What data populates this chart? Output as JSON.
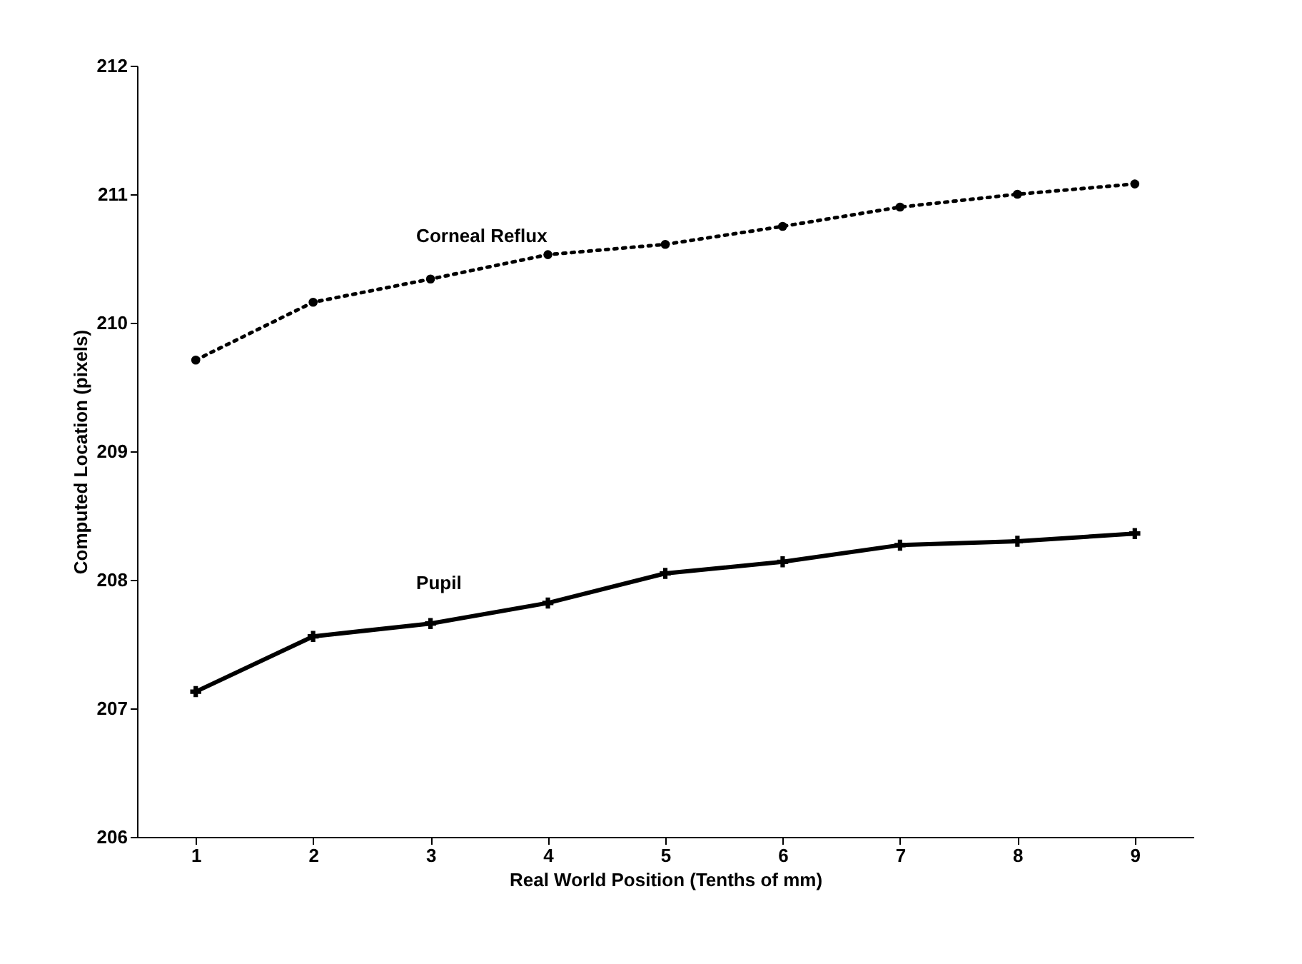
{
  "chart_data": {
    "type": "line",
    "xlabel": "Real World Position (Tenths of mm)",
    "ylabel": "Computed Location (pixels)",
    "x": [
      1,
      2,
      3,
      4,
      5,
      6,
      7,
      8,
      9
    ],
    "xlim": [
      0.5,
      9.5
    ],
    "xticks": [
      1,
      2,
      3,
      4,
      5,
      6,
      7,
      8,
      9
    ],
    "ylim": [
      206,
      212
    ],
    "yticks": [
      206,
      207,
      208,
      209,
      210,
      211,
      212
    ],
    "grid": false,
    "series": [
      {
        "name": "Corneal Reflux",
        "color": "#000000",
        "marker": "circle",
        "line_style": "dotted",
        "values": [
          209.71,
          210.16,
          210.34,
          210.53,
          210.61,
          210.75,
          210.9,
          211.0,
          211.08
        ]
      },
      {
        "name": "Pupil",
        "color": "#000000",
        "marker": "cross",
        "line_style": "solid",
        "values": [
          207.13,
          207.56,
          207.66,
          207.82,
          208.05,
          208.14,
          208.27,
          208.3,
          208.36
        ]
      }
    ]
  }
}
